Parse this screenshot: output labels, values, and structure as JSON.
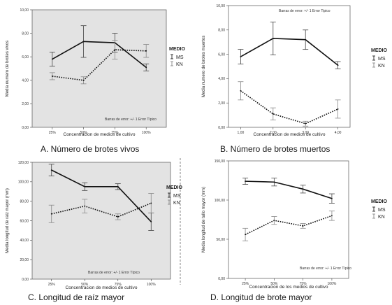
{
  "chart_data": [
    {
      "type": "line",
      "caption": "A. Número de brotes vivos",
      "ylabel": "Media numero de brotes vivos",
      "xlabel": "Concentracion de medios de cultivo",
      "categories": [
        "25%",
        "50%",
        "75%",
        "100%"
      ],
      "ylim": [
        0,
        10
      ],
      "yticks": [
        "0,00",
        "2,00",
        "4,00",
        "6,00",
        "8,00",
        "10,00"
      ],
      "error_note": "Barras de error: +/- 1 Error Típico",
      "legend_title": "MEDIO",
      "background": "#e3e3e3",
      "series": [
        {
          "name": "MS",
          "style": "solid",
          "values": [
            5.8,
            7.3,
            7.2,
            5.1
          ],
          "err": [
            0.6,
            1.35,
            0.8,
            0.3
          ]
        },
        {
          "name": "KN",
          "style": "dotted",
          "values": [
            4.35,
            4.0,
            6.6,
            6.5
          ],
          "err": [
            0.3,
            0.3,
            0.8,
            0.55
          ]
        }
      ]
    },
    {
      "type": "line",
      "caption": "B. Número de brotes muertos",
      "ylabel": "Media numero de brotes muertos",
      "xlabel": "Concentracion de medios de cultivo",
      "categories": [
        "1,00",
        "2,00",
        "3,00",
        "4,00"
      ],
      "ylim": [
        0,
        10
      ],
      "yticks": [
        "0,00",
        "2,00",
        "4,00",
        "6,00",
        "8,00",
        "10,00"
      ],
      "error_note": "Barras de error: +/- 1 Error Tipico",
      "legend_title": "MEDIO",
      "background": "#ffffff",
      "series": [
        {
          "name": "MS",
          "style": "solid",
          "values": [
            5.8,
            7.3,
            7.2,
            5.1
          ],
          "err": [
            0.6,
            1.35,
            0.8,
            0.3
          ]
        },
        {
          "name": "KN",
          "style": "dotted",
          "values": [
            3.0,
            1.1,
            0.3,
            1.5
          ],
          "err": [
            0.75,
            0.5,
            0.2,
            0.75
          ]
        }
      ]
    },
    {
      "type": "line",
      "caption": "C. Longitud de raíz mayor",
      "ylabel": "Media longitud de raiz mayor (mm)",
      "xlabel": "Concentracion de medios de cultivo",
      "categories": [
        "25%",
        "50%",
        "75%",
        "100%"
      ],
      "ylim": [
        0,
        120
      ],
      "yticks": [
        "0,00",
        "20,00",
        "40,00",
        "60,00",
        "80,00",
        "100,00",
        "120,00"
      ],
      "error_note": "Barras de error: +/- 1 Error Típico",
      "legend_title": "MEDIO",
      "background": "#e3e3e3",
      "series": [
        {
          "name": "MS",
          "style": "solid",
          "values": [
            112,
            95,
            95,
            59
          ],
          "err": [
            6,
            4,
            3,
            9
          ]
        },
        {
          "name": "KN",
          "style": "dotted",
          "values": [
            67,
            75,
            64,
            78
          ],
          "err": [
            9,
            7,
            3,
            10
          ]
        }
      ]
    },
    {
      "type": "line",
      "caption": "D. Longitud de brote mayor",
      "ylabel": "Media longitud de tallo mayor (mm)",
      "xlabel": "Concentracion de los medios de cultivo",
      "categories": [
        "25%",
        "50%",
        "75%",
        "100%"
      ],
      "ylim": [
        0,
        150
      ],
      "yticks": [
        "0,00",
        "50,00",
        "100,00",
        "150,00"
      ],
      "error_note": "Barras de error: +/- 1 Error Típico",
      "legend_title": "MEDIO",
      "background": "#ffffff",
      "series": [
        {
          "name": "MS",
          "style": "solid",
          "values": [
            124,
            123,
            114,
            102
          ],
          "err": [
            4,
            5,
            5,
            6
          ]
        },
        {
          "name": "KN",
          "style": "dotted",
          "values": [
            56,
            74,
            67,
            80
          ],
          "err": [
            8,
            5,
            3,
            6
          ]
        }
      ]
    }
  ]
}
